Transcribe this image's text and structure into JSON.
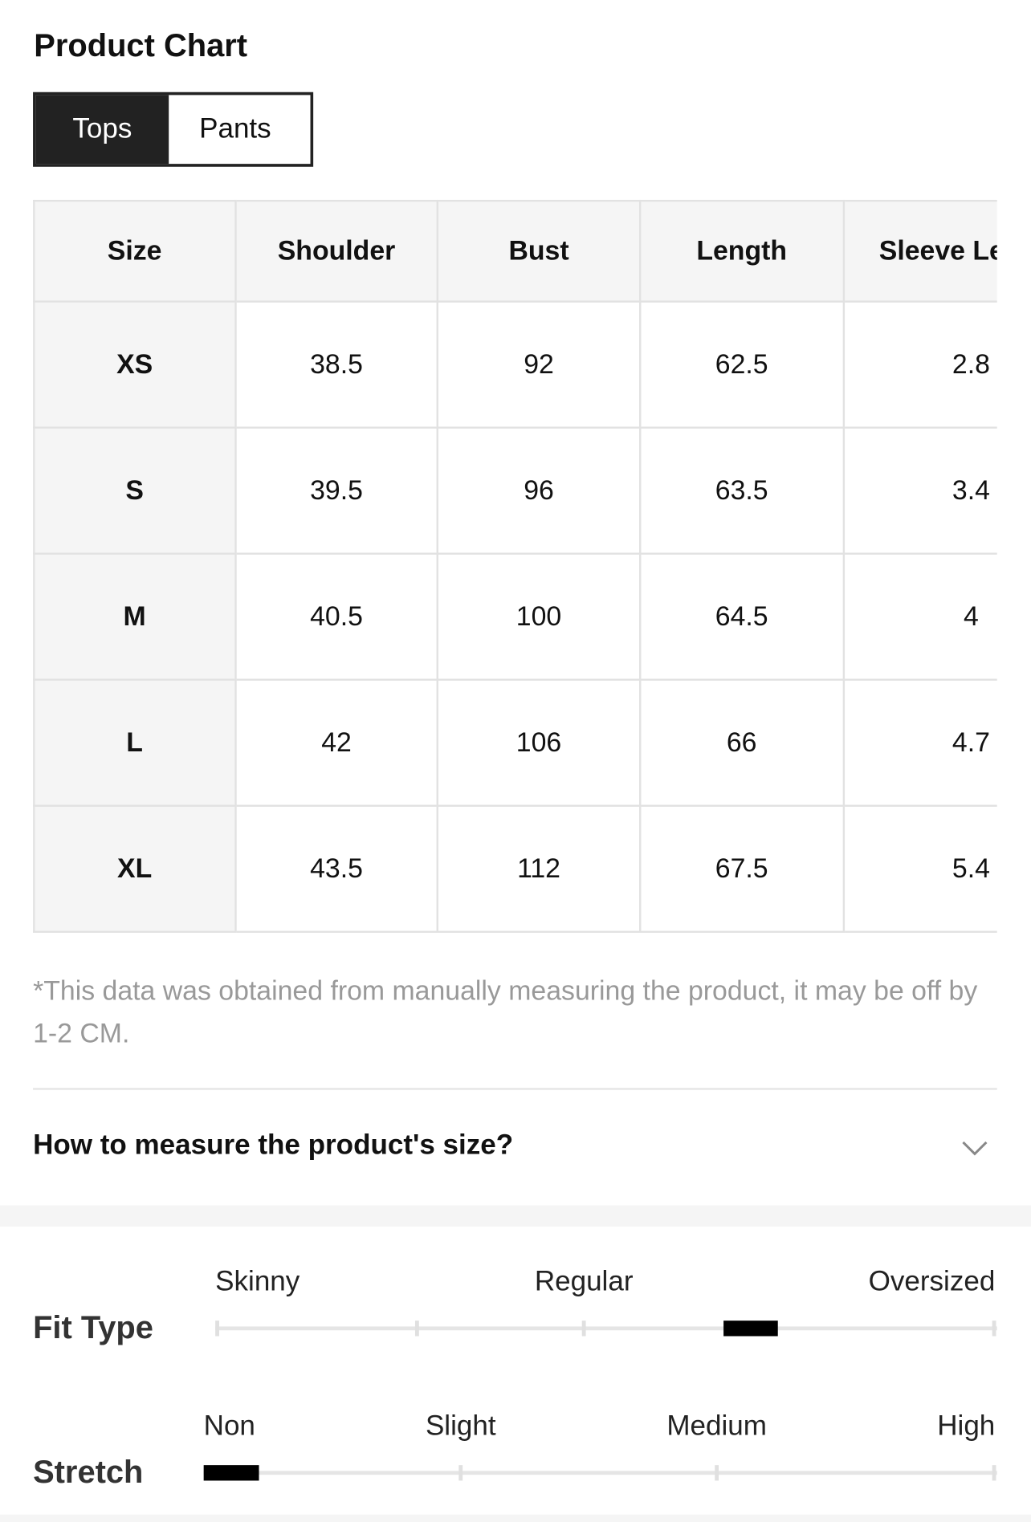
{
  "header": {
    "title": "Product Chart"
  },
  "tabs": [
    "Tops",
    "Pants"
  ],
  "table": {
    "columns": [
      "Size",
      "Shoulder",
      "Bust",
      "Length",
      "Sleeve Length"
    ],
    "rows": [
      [
        "XS",
        "38.5",
        "92",
        "62.5",
        "2.8"
      ],
      [
        "S",
        "39.5",
        "96",
        "63.5",
        "3.4"
      ],
      [
        "M",
        "40.5",
        "100",
        "64.5",
        "4"
      ],
      [
        "L",
        "42",
        "106",
        "66",
        "4.7"
      ],
      [
        "XL",
        "43.5",
        "112",
        "67.5",
        "5.4"
      ]
    ]
  },
  "note": "*This data was obtained from manually measuring the product, it may be off by 1-2 CM.",
  "accordion": {
    "title": "How to measure the product's size?"
  },
  "fit_type": {
    "label": "Fit Type",
    "scale": [
      "Skinny",
      "Regular",
      "Oversized"
    ]
  },
  "stretch": {
    "label": "Stretch",
    "scale": [
      "Non",
      "Slight",
      "Medium",
      "High"
    ]
  }
}
